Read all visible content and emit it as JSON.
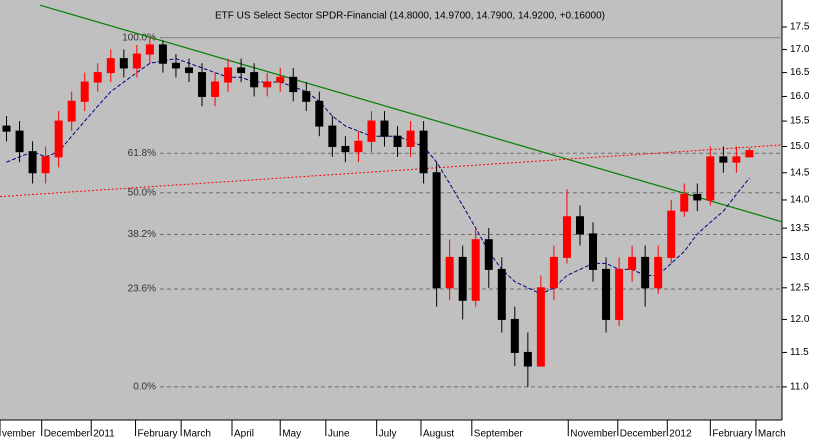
{
  "chart_data": {
    "type": "candlestick",
    "title": "ETF US Select Sector SPDR-Financial (14.8000, 14.9700, 14.7900, 14.9200, +0.16000)",
    "log_scale": true,
    "ylim": [
      10.54,
      18.12
    ],
    "yticks": [
      {
        "value": 11.0,
        "label": "11.0"
      },
      {
        "value": 11.5,
        "label": "11.5"
      },
      {
        "value": 12.0,
        "label": "12.0"
      },
      {
        "value": 12.5,
        "label": "12.5"
      },
      {
        "value": 13.0,
        "label": "13.0"
      },
      {
        "value": 13.5,
        "label": "13.5"
      },
      {
        "value": 14.0,
        "label": "14.0"
      },
      {
        "value": 14.5,
        "label": "14.5"
      },
      {
        "value": 15.0,
        "label": "15.0"
      },
      {
        "value": 15.5,
        "label": "15.5"
      },
      {
        "value": 16.0,
        "label": "16.0"
      },
      {
        "value": 16.5,
        "label": "16.5"
      },
      {
        "value": 17.0,
        "label": "17.0"
      },
      {
        "value": 17.5,
        "label": "17.5"
      }
    ],
    "xlim": [
      0,
      60
    ],
    "xticks": [
      {
        "value": 0,
        "label": "vember"
      },
      {
        "value": 3.2,
        "label": "December"
      },
      {
        "value": 7.0,
        "label": "2011"
      },
      {
        "value": 10.4,
        "label": "February"
      },
      {
        "value": 13.9,
        "label": "March"
      },
      {
        "value": 17.8,
        "label": "April"
      },
      {
        "value": 21.5,
        "label": "May"
      },
      {
        "value": 25.0,
        "label": "June"
      },
      {
        "value": 28.9,
        "label": "July"
      },
      {
        "value": 32.3,
        "label": "August"
      },
      {
        "value": 36.2,
        "label": "September"
      },
      {
        "value": 43.6,
        "label": "November"
      },
      {
        "value": 47.4,
        "label": "December"
      },
      {
        "value": 51.2,
        "label": "2012"
      },
      {
        "value": 54.5,
        "label": "February"
      },
      {
        "value": 58.0,
        "label": "March"
      }
    ],
    "up_color": "#ff0000",
    "down_color": "#000000",
    "open": [
      15.4,
      15.3,
      14.9,
      14.5,
      14.8,
      15.5,
      15.9,
      16.3,
      16.5,
      16.8,
      16.6,
      16.9,
      17.1,
      16.7,
      16.6,
      16.5,
      16.0,
      16.3,
      16.6,
      16.5,
      16.2,
      16.3,
      16.4,
      16.1,
      15.9,
      15.4,
      15.0,
      14.9,
      15.1,
      15.5,
      15.2,
      15.0,
      15.3,
      14.5,
      12.5,
      13.0,
      12.3,
      13.3,
      12.8,
      12.0,
      11.5,
      11.3,
      12.5,
      13.0,
      13.7,
      13.4,
      12.8,
      12.0,
      12.8,
      13.0,
      12.5,
      13.0,
      13.8,
      14.1,
      14.0,
      14.8,
      14.7,
      14.8
    ],
    "high": [
      15.6,
      15.5,
      15.1,
      15.0,
      15.7,
      16.1,
      16.5,
      16.7,
      17.0,
      17.0,
      17.1,
      17.26,
      17.2,
      16.9,
      16.8,
      16.7,
      16.5,
      16.8,
      16.8,
      16.7,
      16.5,
      16.6,
      16.6,
      16.3,
      16.1,
      15.6,
      15.2,
      15.3,
      15.7,
      15.7,
      15.4,
      15.5,
      15.5,
      14.7,
      13.3,
      13.2,
      13.5,
      13.5,
      13.0,
      12.2,
      11.8,
      12.7,
      13.2,
      14.2,
      13.9,
      13.6,
      13.0,
      13.0,
      13.2,
      13.2,
      13.2,
      14.0,
      14.3,
      14.3,
      15.0,
      15.0,
      15.0,
      14.97
    ],
    "low": [
      15.1,
      14.7,
      14.3,
      14.3,
      14.6,
      15.3,
      15.7,
      16.1,
      16.3,
      16.4,
      16.4,
      16.7,
      16.5,
      16.4,
      16.3,
      15.8,
      15.8,
      16.1,
      16.3,
      16.0,
      16.0,
      16.1,
      15.9,
      15.7,
      15.2,
      14.8,
      14.7,
      14.7,
      14.9,
      15.0,
      14.8,
      14.8,
      14.3,
      12.2,
      12.3,
      12.0,
      12.2,
      12.5,
      11.8,
      11.3,
      11.0,
      11.3,
      12.3,
      12.9,
      13.2,
      12.6,
      11.8,
      11.9,
      12.6,
      12.2,
      12.4,
      12.9,
      13.7,
      13.8,
      13.9,
      14.5,
      14.5,
      14.79
    ],
    "close": [
      15.3,
      14.9,
      14.5,
      14.8,
      15.5,
      15.9,
      16.3,
      16.5,
      16.8,
      16.6,
      16.9,
      17.1,
      16.7,
      16.6,
      16.5,
      16.0,
      16.3,
      16.6,
      16.5,
      16.2,
      16.3,
      16.4,
      16.1,
      15.9,
      15.4,
      15.0,
      14.9,
      15.1,
      15.5,
      15.2,
      15.0,
      15.3,
      14.5,
      12.5,
      13.0,
      12.3,
      13.3,
      12.8,
      12.0,
      11.5,
      11.3,
      12.5,
      13.0,
      13.7,
      13.4,
      12.8,
      12.0,
      12.8,
      13.0,
      12.5,
      13.0,
      13.8,
      14.1,
      14.0,
      14.8,
      14.7,
      14.8,
      14.92
    ],
    "moving_average": {
      "color": "#000080",
      "values": [
        14.7,
        14.8,
        14.9,
        14.8,
        14.9,
        15.2,
        15.5,
        15.8,
        16.1,
        16.3,
        16.5,
        16.7,
        16.75,
        16.8,
        16.7,
        16.6,
        16.5,
        16.4,
        16.4,
        16.3,
        16.3,
        16.3,
        16.2,
        16.1,
        15.9,
        15.6,
        15.4,
        15.3,
        15.2,
        15.2,
        15.2,
        15.1,
        15.0,
        14.7,
        14.3,
        13.9,
        13.5,
        13.1,
        12.8,
        12.6,
        12.5,
        12.4,
        12.5,
        12.7,
        12.8,
        12.9,
        12.9,
        12.8,
        12.8,
        12.7,
        12.7,
        12.9,
        13.1,
        13.4,
        13.6,
        13.8,
        14.1,
        14.4
      ]
    },
    "trendlines": [
      {
        "color": "#008000",
        "x": [
          3.07,
          60
        ],
        "y": [
          18.0,
          13.61
        ]
      },
      {
        "color": "#ff0000",
        "x": [
          0,
          60
        ],
        "y": [
          14.06,
          15.03
        ]
      }
    ],
    "fib_levels": [
      {
        "value": 17.26,
        "label": "100.0%"
      },
      {
        "value": 14.87,
        "label": "61.8%"
      },
      {
        "value": 14.13,
        "label": "50.0%"
      },
      {
        "value": 13.39,
        "label": "38.2%"
      },
      {
        "value": 12.48,
        "label": "23.6%"
      },
      {
        "value": 11.0,
        "label": "0.0%"
      }
    ]
  }
}
